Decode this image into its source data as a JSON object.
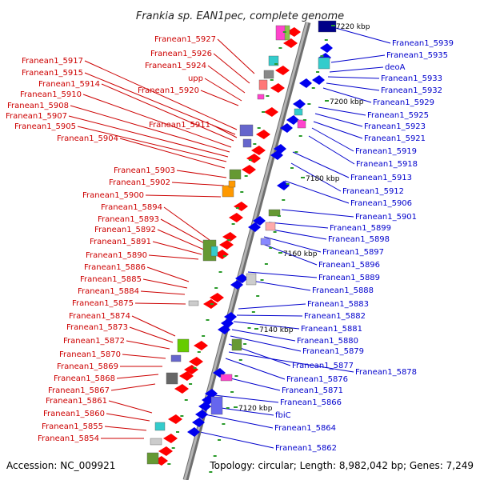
{
  "title": "Frankia sp. EAN1pec, complete genome",
  "footer": {
    "accession": "Accession: NC_009921",
    "summary": "Topology: circular; Length: 8,982,042 bp; Genes: 7,249"
  },
  "colors": {
    "forward_label": "#cc0000",
    "reverse_label": "#0000cc",
    "forward_gene": "#ff0000",
    "reverse_gene": "#0000ee",
    "backbone": "#8a8a8a"
  },
  "kbp_ticks": [
    "7220 kbp",
    "7200 kbp",
    "7180 kbp",
    "7160 kbp",
    "7140 kbp",
    "7120 kbp"
  ],
  "forward_labels": [
    "Franean1_5927",
    "Franean1_5926",
    "Franean1_5924",
    "upp",
    "Franean1_5920",
    "Franean1_5917",
    "Franean1_5915",
    "Franean1_5914",
    "Franean1_5910",
    "Franean1_5908",
    "Franean1_5907",
    "Franean1_5905",
    "Franean1_5911",
    "Franean1_5904",
    "Franean1_5903",
    "Franean1_5902",
    "Franean1_5900",
    "Franean1_5894",
    "Franean1_5893",
    "Franean1_5892",
    "Franean1_5891",
    "Franean1_5890",
    "Franean1_5886",
    "Franean1_5885",
    "Franean1_5884",
    "Franean1_5875",
    "Franean1_5874",
    "Franean1_5873",
    "Franean1_5872",
    "Franean1_5870",
    "Franean1_5869",
    "Franean1_5868",
    "Franean1_5867",
    "Franean1_5861",
    "Franean1_5860",
    "Franean1_5855",
    "Franean1_5854"
  ],
  "reverse_labels": [
    "Franean1_5939",
    "Franean1_5935",
    "deoA",
    "Franean1_5933",
    "Franean1_5932",
    "Franean1_5929",
    "Franean1_5925",
    "Franean1_5923",
    "Franean1_5921",
    "Franean1_5919",
    "Franean1_5918",
    "Franean1_5913",
    "Franean1_5912",
    "Franean1_5906",
    "Franean1_5901",
    "Franean1_5899",
    "Franean1_5898",
    "Franean1_5897",
    "Franean1_5896",
    "Franean1_5889",
    "Franean1_5888",
    "Franean1_5883",
    "Franean1_5882",
    "Franean1_5881",
    "Franean1_5880",
    "Franean1_5879",
    "Franean1_5877",
    "Franean1_5878",
    "Franean1_5876",
    "Franean1_5871",
    "Franean1_5866",
    "fbiC",
    "Franean1_5864",
    "Franean1_5862"
  ]
}
